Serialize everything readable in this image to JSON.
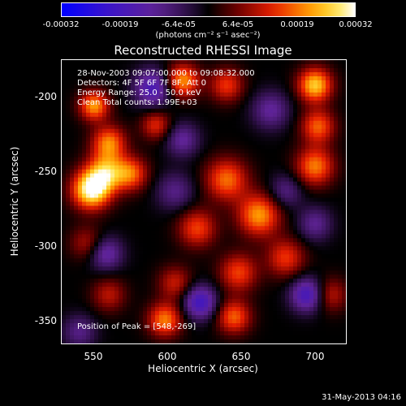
{
  "chart_data": {
    "type": "heatmap",
    "title": "Reconstructed RHESSI Image",
    "xlabel": "Heliocentric X (arcsec)",
    "ylabel": "Heliocentric Y (arcsec)",
    "xlim": [
      528,
      721
    ],
    "ylim": [
      -373,
      -181
    ],
    "xticks": [
      "550",
      "600",
      "650",
      "700"
    ],
    "xtick_values": [
      550,
      600,
      650,
      700
    ],
    "yticks": [
      "-200",
      "-250",
      "-300",
      "-350"
    ],
    "ytick_values": [
      -200,
      -250,
      -300,
      -350
    ],
    "colorbar": {
      "units": "(photons cm⁻² s⁻¹ asec⁻²)",
      "range": [
        -0.00032,
        0.00032
      ],
      "ticks": [
        "-0.00032",
        "-0.00019",
        "-6.4e-05",
        "6.4e-05",
        "0.00019",
        "0.00032"
      ],
      "tick_values": [
        -0.00032,
        -0.00019,
        -6.4e-05,
        6.4e-05,
        0.00019,
        0.00032
      ]
    },
    "annotations": [
      "28-Nov-2003 09:07:00.000 to 09:08:32.000",
      "Detectors: 4F 5F 6F 7F 8F, Att 0",
      "Energy Range: 25.0 - 50.0 keV",
      "Clean     Total counts: 1.99E+03"
    ],
    "peak_label": "Position of Peak = [548,-269]",
    "peak": [
      548,
      -269
    ],
    "sources": [
      {
        "x": 548,
        "y": -269,
        "intensity": 0.00032,
        "sigma": 9
      },
      {
        "x": 558,
        "y": -257,
        "intensity": 0.00022,
        "sigma": 9
      },
      {
        "x": 575,
        "y": -258,
        "intensity": 0.00018,
        "sigma": 8
      },
      {
        "x": 560,
        "y": -237,
        "intensity": 0.0002,
        "sigma": 8
      },
      {
        "x": 550,
        "y": -212,
        "intensity": 0.00022,
        "sigma": 7
      },
      {
        "x": 610,
        "y": -195,
        "intensity": 0.00022,
        "sigma": 8
      },
      {
        "x": 640,
        "y": -198,
        "intensity": 0.00015,
        "sigma": 8
      },
      {
        "x": 700,
        "y": -198,
        "intensity": 0.00026,
        "sigma": 8
      },
      {
        "x": 702,
        "y": -226,
        "intensity": 0.00018,
        "sigma": 8
      },
      {
        "x": 700,
        "y": -253,
        "intensity": 0.0002,
        "sigma": 9
      },
      {
        "x": 592,
        "y": -225,
        "intensity": 0.00014,
        "sigma": 7
      },
      {
        "x": 640,
        "y": -262,
        "intensity": 0.00019,
        "sigma": 10
      },
      {
        "x": 662,
        "y": -286,
        "intensity": 0.00022,
        "sigma": 10
      },
      {
        "x": 620,
        "y": -295,
        "intensity": 0.00016,
        "sigma": 9
      },
      {
        "x": 680,
        "y": -315,
        "intensity": 0.00015,
        "sigma": 9
      },
      {
        "x": 648,
        "y": -325,
        "intensity": 0.00016,
        "sigma": 9
      },
      {
        "x": 605,
        "y": -332,
        "intensity": 0.00012,
        "sigma": 8
      },
      {
        "x": 598,
        "y": -357,
        "intensity": 0.0002,
        "sigma": 8
      },
      {
        "x": 645,
        "y": -355,
        "intensity": 0.00018,
        "sigma": 8
      },
      {
        "x": 560,
        "y": -340,
        "intensity": 0.00011,
        "sigma": 8
      },
      {
        "x": 545,
        "y": -305,
        "intensity": 0.0001,
        "sigma": 8
      },
      {
        "x": 710,
        "y": -340,
        "intensity": 0.00012,
        "sigma": 8
      },
      {
        "x": 590,
        "y": -200,
        "intensity": -0.00018,
        "sigma": 9
      },
      {
        "x": 610,
        "y": -235,
        "intensity": -0.00012,
        "sigma": 8
      },
      {
        "x": 622,
        "y": -345,
        "intensity": -0.0002,
        "sigma": 8
      },
      {
        "x": 695,
        "y": -340,
        "intensity": -0.0002,
        "sigma": 8
      },
      {
        "x": 558,
        "y": -312,
        "intensity": -0.00014,
        "sigma": 8
      },
      {
        "x": 670,
        "y": -215,
        "intensity": -0.00012,
        "sigma": 9
      },
      {
        "x": 605,
        "y": -270,
        "intensity": -0.0001,
        "sigma": 9
      },
      {
        "x": 680,
        "y": -270,
        "intensity": -0.0001,
        "sigma": 8
      },
      {
        "x": 540,
        "y": -365,
        "intensity": -0.0001,
        "sigma": 8
      },
      {
        "x": 700,
        "y": -292,
        "intensity": -0.00011,
        "sigma": 8
      }
    ]
  },
  "footer": {
    "timestamp": "31-May-2013 04:16"
  },
  "colors": {
    "background": "#000000",
    "text": "#ffffff"
  }
}
